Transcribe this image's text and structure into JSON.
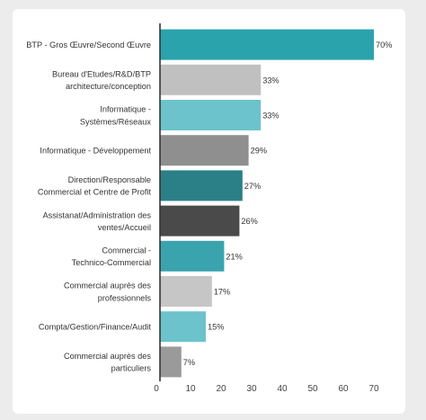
{
  "chart_data": {
    "type": "bar",
    "orientation": "horizontal",
    "categories": [
      [
        "BTP - Gros Œuvre/Second Œuvre"
      ],
      [
        "Bureau d'Etudes/R&D/BTP",
        "architecture/conception"
      ],
      [
        "Informatique -",
        "Systèmes/Réseaux"
      ],
      [
        "Informatique - Développement"
      ],
      [
        "Direction/Responsable",
        "Commercial et Centre de Profit"
      ],
      [
        "Assistanat/Administration des",
        "ventes/Accueil"
      ],
      [
        "Commercial -",
        "Technico-Commercial"
      ],
      [
        "Commercial auprès des",
        "professionnels"
      ],
      [
        "Compta/Gestion/Finance/Audit"
      ],
      [
        "Commercial auprès des",
        "particuliers"
      ]
    ],
    "values": [
      70,
      33,
      33,
      29,
      27,
      26,
      21,
      17,
      15,
      7
    ],
    "value_labels": [
      "70%",
      "33%",
      "33%",
      "29%",
      "27%",
      "26%",
      "21%",
      "17%",
      "15%",
      "7%"
    ],
    "bar_colors": [
      "#2aa3ad",
      "#c0c0c0",
      "#6cc3cc",
      "#8f8f8f",
      "#2b7f87",
      "#4a4a4a",
      "#3aa4ae",
      "#c6c6c6",
      "#6cc3cc",
      "#9a9a9a"
    ],
    "xticks": [
      0,
      10,
      20,
      30,
      40,
      50,
      60,
      70
    ],
    "xlim": [
      0,
      72
    ],
    "title": "",
    "xlabel": "",
    "ylabel": "",
    "grid": false,
    "legend": "none"
  }
}
